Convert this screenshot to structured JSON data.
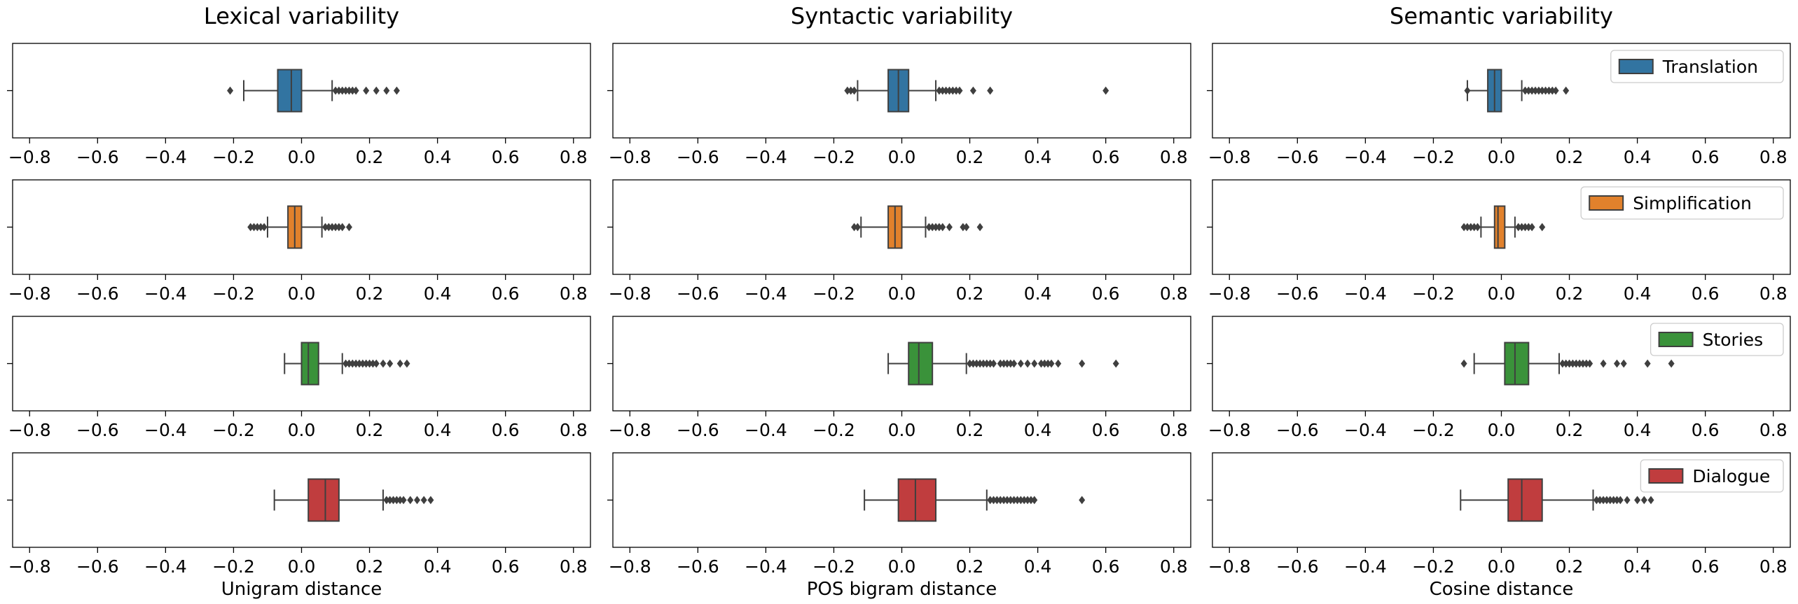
{
  "chart_data": {
    "type": "boxplot",
    "columns": [
      {
        "title": "Lexical variability",
        "xlabel": "Unigram distance"
      },
      {
        "title": "Syntactic variability",
        "xlabel": "POS bigram distance"
      },
      {
        "title": "Semantic variability",
        "xlabel": "Cosine distance"
      }
    ],
    "rows": [
      {
        "name": "Translation",
        "color": "#3274a1"
      },
      {
        "name": "Simplification",
        "color": "#e1812c"
      },
      {
        "name": "Stories",
        "color": "#3a923a"
      },
      {
        "name": "Dialogue",
        "color": "#c03d3e"
      }
    ],
    "xlim": [
      -0.85,
      0.85
    ],
    "xticks": [
      -0.8,
      -0.6,
      -0.4,
      -0.2,
      0.0,
      0.2,
      0.4,
      0.6,
      0.8
    ],
    "xtick_labels": [
      "−0.8",
      "−0.6",
      "−0.4",
      "−0.2",
      "0.0",
      "0.2",
      "0.4",
      "0.6",
      "0.8"
    ],
    "legend_position": "upper-right",
    "boxes": [
      [
        {
          "whisker_low": -0.17,
          "q1": -0.07,
          "median": -0.03,
          "q3": 0.0,
          "whisker_high": 0.09,
          "outliers": [
            -0.21,
            0.1,
            0.11,
            0.12,
            0.13,
            0.14,
            0.15,
            0.16,
            0.19,
            0.22,
            0.25,
            0.28
          ]
        },
        {
          "whisker_low": -0.1,
          "q1": -0.04,
          "median": -0.02,
          "q3": 0.0,
          "whisker_high": 0.06,
          "outliers": [
            -0.15,
            -0.14,
            -0.13,
            -0.12,
            -0.11,
            0.07,
            0.08,
            0.09,
            0.1,
            0.11,
            0.12,
            0.14
          ]
        },
        {
          "whisker_low": -0.05,
          "q1": 0.0,
          "median": 0.02,
          "q3": 0.05,
          "whisker_high": 0.12,
          "outliers": [
            0.13,
            0.14,
            0.15,
            0.16,
            0.17,
            0.18,
            0.19,
            0.2,
            0.21,
            0.22,
            0.24,
            0.26,
            0.29,
            0.31
          ]
        },
        {
          "whisker_low": -0.08,
          "q1": 0.02,
          "median": 0.07,
          "q3": 0.11,
          "whisker_high": 0.24,
          "outliers": [
            0.25,
            0.26,
            0.27,
            0.28,
            0.29,
            0.3,
            0.32,
            0.34,
            0.36,
            0.38
          ]
        }
      ],
      [
        {
          "whisker_low": -0.13,
          "q1": -0.04,
          "median": -0.01,
          "q3": 0.02,
          "whisker_high": 0.1,
          "outliers": [
            -0.16,
            -0.15,
            -0.14,
            0.11,
            0.12,
            0.13,
            0.14,
            0.15,
            0.16,
            0.17,
            0.21,
            0.26,
            0.6
          ]
        },
        {
          "whisker_low": -0.12,
          "q1": -0.04,
          "median": -0.02,
          "q3": 0.0,
          "whisker_high": 0.07,
          "outliers": [
            -0.14,
            -0.13,
            0.08,
            0.09,
            0.1,
            0.11,
            0.12,
            0.14,
            0.18,
            0.19,
            0.23
          ]
        },
        {
          "whisker_low": -0.04,
          "q1": 0.02,
          "median": 0.05,
          "q3": 0.09,
          "whisker_high": 0.19,
          "outliers": [
            0.2,
            0.21,
            0.22,
            0.23,
            0.24,
            0.25,
            0.26,
            0.27,
            0.29,
            0.3,
            0.31,
            0.32,
            0.33,
            0.35,
            0.37,
            0.39,
            0.41,
            0.42,
            0.43,
            0.44,
            0.46,
            0.53,
            0.63
          ]
        },
        {
          "whisker_low": -0.11,
          "q1": -0.01,
          "median": 0.04,
          "q3": 0.1,
          "whisker_high": 0.25,
          "outliers": [
            0.26,
            0.27,
            0.28,
            0.29,
            0.3,
            0.31,
            0.32,
            0.33,
            0.34,
            0.35,
            0.36,
            0.37,
            0.38,
            0.39,
            0.53
          ]
        }
      ],
      [
        {
          "whisker_low": -0.1,
          "q1": -0.04,
          "median": -0.02,
          "q3": 0.0,
          "whisker_high": 0.06,
          "outliers": [
            -0.1,
            0.07,
            0.08,
            0.09,
            0.1,
            0.11,
            0.12,
            0.13,
            0.14,
            0.15,
            0.16,
            0.19
          ]
        },
        {
          "whisker_low": -0.06,
          "q1": -0.02,
          "median": -0.01,
          "q3": 0.01,
          "whisker_high": 0.04,
          "outliers": [
            -0.11,
            -0.1,
            -0.09,
            -0.08,
            -0.07,
            0.05,
            0.06,
            0.07,
            0.08,
            0.09,
            0.12
          ]
        },
        {
          "whisker_low": -0.08,
          "q1": 0.01,
          "median": 0.04,
          "q3": 0.08,
          "whisker_high": 0.17,
          "outliers": [
            -0.11,
            0.18,
            0.19,
            0.2,
            0.21,
            0.22,
            0.23,
            0.24,
            0.25,
            0.26,
            0.3,
            0.34,
            0.36,
            0.43,
            0.5
          ]
        },
        {
          "whisker_low": -0.12,
          "q1": 0.02,
          "median": 0.06,
          "q3": 0.12,
          "whisker_high": 0.27,
          "outliers": [
            0.28,
            0.29,
            0.3,
            0.31,
            0.32,
            0.33,
            0.34,
            0.35,
            0.37,
            0.4,
            0.42,
            0.44
          ]
        }
      ]
    ]
  }
}
